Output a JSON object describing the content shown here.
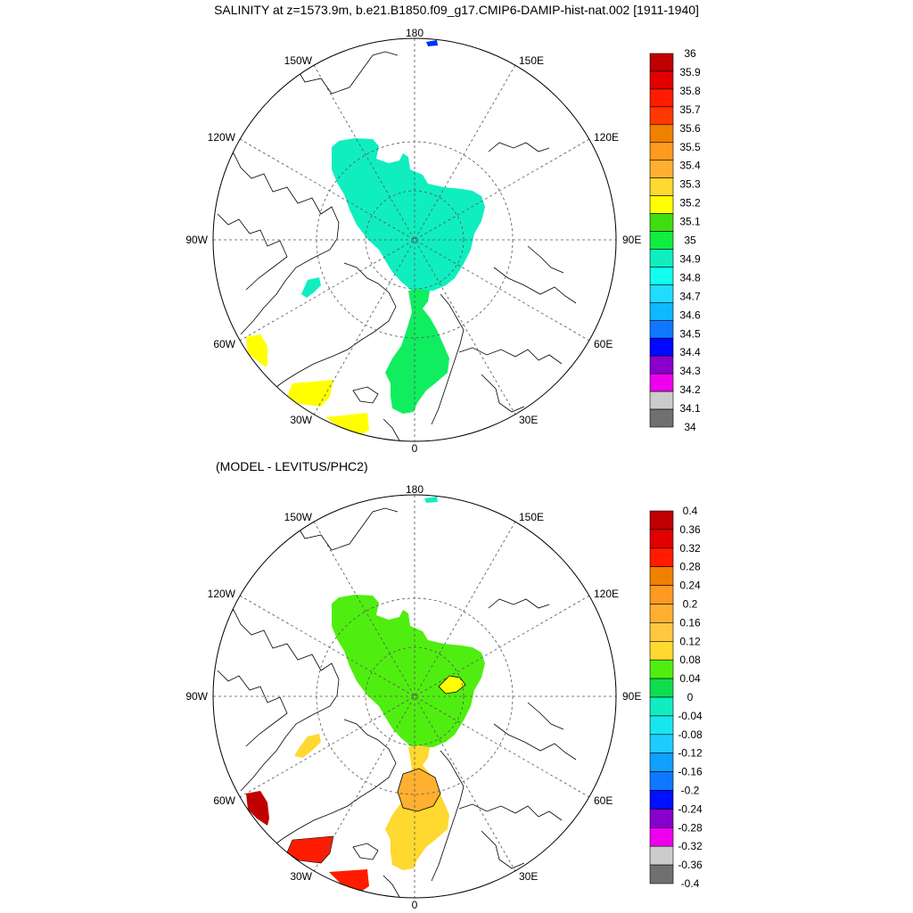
{
  "title": "SALINITY at z=1573.9m, b.e21.B1850.f09_g17.CMIP6-DAMIP-hist-nat.002 [1911-1940]",
  "panels": [
    {
      "id": "salinity",
      "subtitle": "",
      "lon_labels": [
        "180",
        "150E",
        "120E",
        "90E",
        "60E",
        "30E",
        "0",
        "30W",
        "60W",
        "90W",
        "120W",
        "150W"
      ],
      "colorbar": {
        "labels": [
          "36",
          "35.9",
          "35.8",
          "35.7",
          "35.6",
          "35.5",
          "35.4",
          "35.3",
          "35.2",
          "35.1",
          "35",
          "34.9",
          "34.8",
          "34.7",
          "34.6",
          "34.5",
          "34.4",
          "34.3",
          "34.2",
          "34.1",
          "34"
        ],
        "colors": [
          "#c00000",
          "#e20000",
          "#ff1c00",
          "#ff3800",
          "#f08000",
          "#ff9a20",
          "#ffb030",
          "#ffd830",
          "#ffff00",
          "#40dd10",
          "#10ee40",
          "#10eec0",
          "#10ffee",
          "#20dcff",
          "#10b8ff",
          "#1078ff",
          "#0008ff",
          "#8800cc",
          "#ee00ee",
          "#cccccc",
          "#707070"
        ]
      }
    },
    {
      "id": "difference",
      "subtitle": "(MODEL - LEVITUS/PHC2)",
      "lon_labels": [
        "180",
        "150E",
        "120E",
        "90E",
        "60E",
        "30E",
        "0",
        "30W",
        "60W",
        "90W",
        "120W",
        "150W"
      ],
      "colorbar": {
        "labels": [
          "0.4",
          "0.36",
          "0.32",
          "0.28",
          "0.24",
          "0.2",
          "0.16",
          "0.12",
          "0.08",
          "0.04",
          "0",
          "-0.04",
          "-0.08",
          "-0.12",
          "-0.16",
          "-0.2",
          "-0.24",
          "-0.28",
          "-0.32",
          "-0.36",
          "-0.4"
        ],
        "colors": [
          "#c00000",
          "#e20000",
          "#ff1c00",
          "#f08000",
          "#ff9a20",
          "#ffb030",
          "#ffc840",
          "#ffd830",
          "#50ee10",
          "#10dd50",
          "#10eec0",
          "#18e6ee",
          "#20ccff",
          "#10a0ff",
          "#1078ff",
          "#0010ff",
          "#8800cc",
          "#ee00ee",
          "#cccccc",
          "#707070"
        ]
      }
    }
  ],
  "map_data": {
    "projection": "north polar stereographic",
    "field": "salinity at depth",
    "depth": "z=1573.9m",
    "period": "[1911-1940]"
  }
}
